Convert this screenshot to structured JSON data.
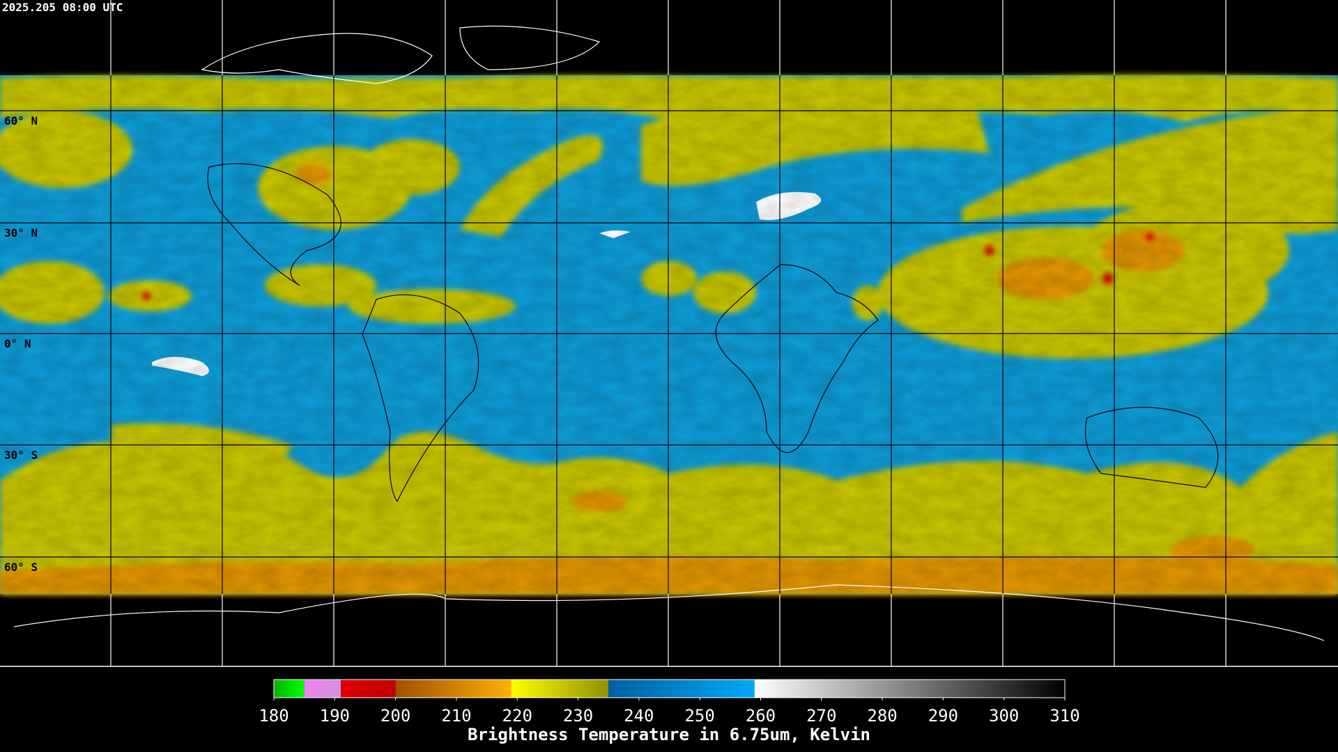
{
  "header": {
    "timestamp": "2025.205 08:00 UTC"
  },
  "map": {
    "latitude_labels": [
      "60° N",
      "30° N",
      "0° N",
      "30° S",
      "60° S"
    ]
  },
  "colorbar": {
    "title": "Brightness Temperature in 6.75um, Kelvin",
    "range": [
      180,
      310
    ],
    "ticks": [
      180,
      190,
      200,
      210,
      220,
      230,
      240,
      250,
      260,
      270,
      280,
      290,
      300,
      310
    ],
    "segments": [
      {
        "from": 180,
        "to": 185,
        "colors": [
          "#00b400",
          "#00ff00"
        ]
      },
      {
        "from": 185,
        "to": 191,
        "colors": [
          "#f080f0",
          "#d090e0"
        ]
      },
      {
        "from": 191,
        "to": 200,
        "colors": [
          "#e00000",
          "#c00000"
        ]
      },
      {
        "from": 200,
        "to": 219,
        "colors": [
          "#a05000",
          "#ffb000"
        ]
      },
      {
        "from": 219,
        "to": 235,
        "colors": [
          "#ffff00",
          "#909000"
        ]
      },
      {
        "from": 235,
        "to": 259,
        "colors": [
          "#0060a0",
          "#00a8f8"
        ]
      },
      {
        "from": 259,
        "to": 310,
        "colors": [
          "#ffffff",
          "#000000"
        ]
      }
    ]
  }
}
